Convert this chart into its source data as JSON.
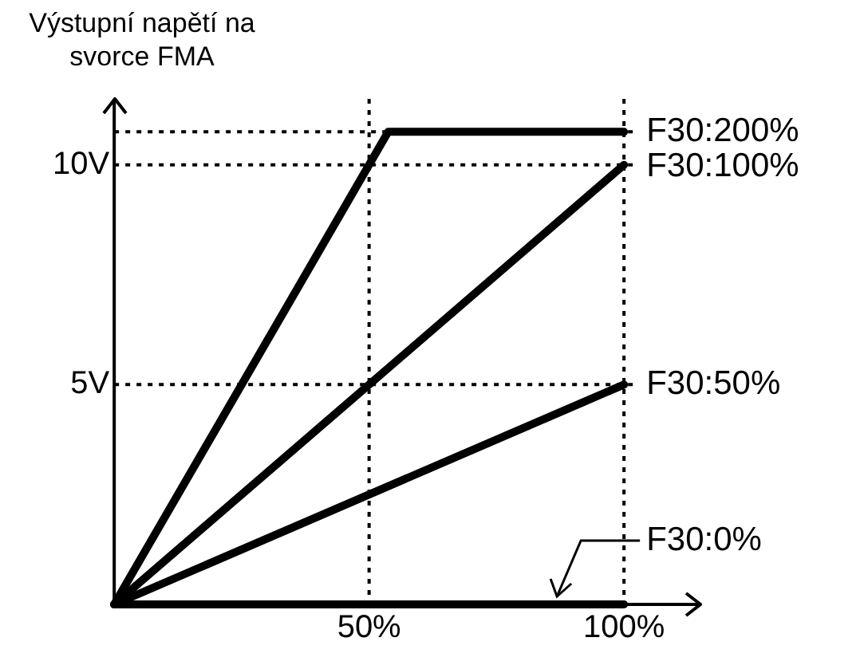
{
  "chart_data": {
    "type": "line",
    "ylabel": "Výstupní napětí na svorce FMA",
    "xlim": [
      0,
      115
    ],
    "xticks": [
      {
        "value": 50,
        "label": "50%"
      },
      {
        "value": 100,
        "label": "100%"
      }
    ],
    "ylim": [
      0,
      11.5
    ],
    "yticks": [
      {
        "value": 5,
        "label": "5V"
      },
      {
        "value": 10,
        "label": "10V"
      }
    ],
    "marker": "none",
    "line_style": "solid",
    "ref_lines": [
      {
        "axis": "y",
        "value": 10.75,
        "line_style": "dotted"
      },
      {
        "axis": "y",
        "value": 10,
        "line_style": "dotted"
      },
      {
        "axis": "y",
        "value": 5,
        "line_style": "dotted"
      },
      {
        "axis": "x",
        "value": 50,
        "line_style": "dotted"
      },
      {
        "axis": "x",
        "value": 100,
        "line_style": "dotted"
      }
    ],
    "series": [
      {
        "name": "F30:200%",
        "color": "#000000",
        "x": [
          0,
          53.75,
          100
        ],
        "values": [
          0,
          10.75,
          10.75
        ]
      },
      {
        "name": "F30:100%",
        "color": "#000000",
        "x": [
          0,
          100
        ],
        "values": [
          0,
          10
        ]
      },
      {
        "name": "F30:50%",
        "color": "#000000",
        "x": [
          0,
          100
        ],
        "values": [
          0,
          5
        ]
      },
      {
        "name": "F30:0%",
        "color": "#000000",
        "x": [
          0,
          100
        ],
        "values": [
          0,
          0
        ]
      }
    ]
  }
}
